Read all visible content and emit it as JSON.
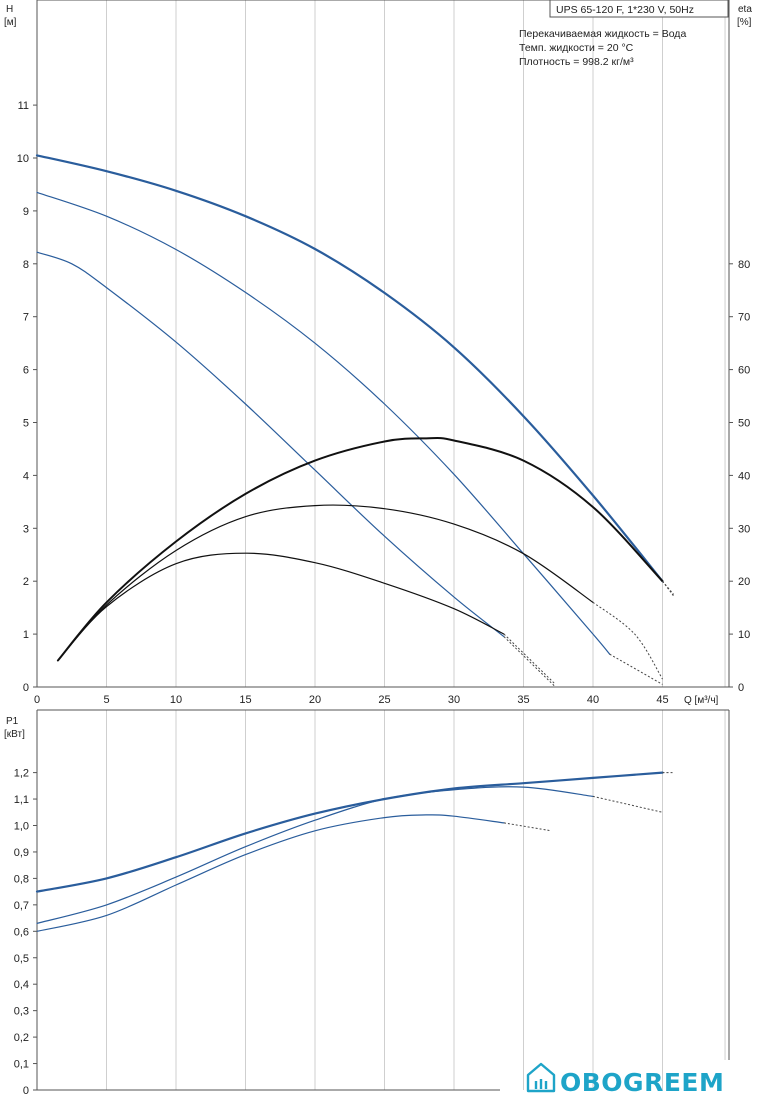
{
  "chart_data": [
    {
      "type": "line",
      "info": {
        "model": "UPS 65-120 F, 1*230 V, 50Hz",
        "line1": "Перекачиваемая жидкость = Вода",
        "line2": "Темп. жидкости = 20 °C",
        "line3": "Плотность = 998.2 кг/м³"
      },
      "ylabel_left": [
        "H",
        "[м]"
      ],
      "ylabel_right": [
        "eta",
        "[%]"
      ],
      "xlabel": "Q [м³/ч]",
      "xlim": [
        0,
        50
      ],
      "ylim": [
        0,
        12.5
      ],
      "ylim_right": [
        0,
        125
      ],
      "xticks": [
        "0",
        "5",
        "10",
        "15",
        "20",
        "25",
        "30",
        "35",
        "40",
        "45"
      ],
      "yticks": [
        "0",
        "1",
        "2",
        "3",
        "4",
        "5",
        "6",
        "7",
        "8",
        "9",
        "10",
        "11"
      ],
      "yticks_right": [
        "0",
        "10",
        "20",
        "30",
        "40",
        "50",
        "60",
        "70",
        "80"
      ],
      "series": [
        {
          "axis": "H",
          "color": "#2a5d9c",
          "width": 2.2,
          "solid": [
            [
              0,
              10.05
            ],
            [
              5,
              9.75
            ],
            [
              10,
              9.38
            ],
            [
              15,
              8.9
            ],
            [
              20,
              8.28
            ],
            [
              25,
              7.45
            ],
            [
              30,
              6.42
            ],
            [
              35,
              5.12
            ],
            [
              40,
              3.62
            ],
            [
              45,
              2.0
            ]
          ],
          "dashed": [
            [
              45,
              2.0
            ],
            [
              45.8,
              1.75
            ]
          ]
        },
        {
          "axis": "H",
          "color": "#2a5d9c",
          "width": 1.2,
          "solid": [
            [
              0,
              9.35
            ],
            [
              5,
              8.9
            ],
            [
              10,
              8.27
            ],
            [
              15,
              7.46
            ],
            [
              20,
              6.5
            ],
            [
              25,
              5.35
            ],
            [
              30,
              4.02
            ],
            [
              35,
              2.52
            ],
            [
              40,
              1.0
            ],
            [
              41.2,
              0.62
            ]
          ],
          "dashed": [
            [
              41.2,
              0.62
            ],
            [
              45,
              0.05
            ]
          ]
        },
        {
          "axis": "H",
          "color": "#2a5d9c",
          "width": 1.2,
          "solid": [
            [
              0,
              8.22
            ],
            [
              2.5,
              8.0
            ],
            [
              5,
              7.55
            ],
            [
              10,
              6.52
            ],
            [
              15,
              5.35
            ],
            [
              20,
              4.1
            ],
            [
              25,
              2.85
            ],
            [
              30,
              1.7
            ],
            [
              33.6,
              0.95
            ]
          ],
          "dashed": [
            [
              33.6,
              0.95
            ],
            [
              37.3,
              0.0
            ]
          ]
        },
        {
          "axis": "eta",
          "color": "#111111",
          "width": 2.0,
          "solid": [
            [
              1.5,
              5
            ],
            [
              5,
              16
            ],
            [
              10,
              27.5
            ],
            [
              15,
              36.5
            ],
            [
              20,
              42.8
            ],
            [
              25,
              46.4
            ],
            [
              28,
              47
            ],
            [
              30,
              46.6
            ],
            [
              35,
              42.8
            ],
            [
              40,
              34
            ],
            [
              45,
              20
            ]
          ],
          "dashed": [
            [
              45,
              20
            ],
            [
              45.8,
              17.2
            ]
          ]
        },
        {
          "axis": "eta",
          "color": "#111111",
          "width": 1.2,
          "solid": [
            [
              1.5,
              5
            ],
            [
              5,
              15.5
            ],
            [
              10,
              25.8
            ],
            [
              15,
              32.2
            ],
            [
              20,
              34.3
            ],
            [
              25,
              33.7
            ],
            [
              30,
              30.8
            ],
            [
              35,
              25.2
            ],
            [
              40,
              16
            ]
          ],
          "dashed": [
            [
              40,
              16
            ],
            [
              43,
              10
            ],
            [
              45,
              1.5
            ]
          ]
        },
        {
          "axis": "eta",
          "color": "#111111",
          "width": 1.2,
          "solid": [
            [
              1.5,
              5
            ],
            [
              5,
              15.2
            ],
            [
              10,
              23.3
            ],
            [
              15,
              25.3
            ],
            [
              20,
              23.5
            ],
            [
              25,
              19.6
            ],
            [
              30,
              14.8
            ],
            [
              33.6,
              10
            ]
          ],
          "dashed": [
            [
              33.6,
              10
            ],
            [
              37.3,
              0.5
            ]
          ]
        }
      ]
    },
    {
      "type": "line",
      "ylabel_left": [
        "P1",
        "[кВт]"
      ],
      "xlim": [
        0,
        50
      ],
      "ylim": [
        0,
        1.3
      ],
      "yticks": [
        "0",
        "0,1",
        "0,2",
        "0,3",
        "0,4",
        "0,5",
        "0,6",
        "0,7",
        "0,8",
        "0,9",
        "1,0",
        "1,1",
        "1,2"
      ],
      "series": [
        {
          "color": "#2a5d9c",
          "width": 2.2,
          "solid": [
            [
              0,
              0.75
            ],
            [
              5,
              0.8
            ],
            [
              10,
              0.88
            ],
            [
              15,
              0.97
            ],
            [
              20,
              1.045
            ],
            [
              25,
              1.1
            ],
            [
              30,
              1.14
            ],
            [
              35,
              1.16
            ],
            [
              40,
              1.18
            ],
            [
              45,
              1.2
            ]
          ],
          "dashed": [
            [
              45,
              1.2
            ],
            [
              45.8,
              1.2
            ]
          ]
        },
        {
          "color": "#2a5d9c",
          "width": 1.2,
          "solid": [
            [
              0,
              0.63
            ],
            [
              5,
              0.7
            ],
            [
              10,
              0.805
            ],
            [
              15,
              0.92
            ],
            [
              20,
              1.02
            ],
            [
              25,
              1.1
            ],
            [
              30,
              1.135
            ],
            [
              35,
              1.145
            ],
            [
              40,
              1.11
            ]
          ],
          "dashed": [
            [
              40,
              1.11
            ],
            [
              42.5,
              1.08
            ],
            [
              45,
              1.05
            ]
          ]
        },
        {
          "color": "#2a5d9c",
          "width": 1.2,
          "solid": [
            [
              0,
              0.6
            ],
            [
              5,
              0.66
            ],
            [
              10,
              0.775
            ],
            [
              15,
              0.89
            ],
            [
              20,
              0.98
            ],
            [
              25,
              1.03
            ],
            [
              28,
              1.04
            ],
            [
              30,
              1.035
            ],
            [
              33.6,
              1.01
            ]
          ],
          "dashed": [
            [
              33.6,
              1.01
            ],
            [
              37,
              0.98
            ]
          ]
        }
      ]
    }
  ],
  "watermark": {
    "text": "OBOGREEM",
    "color": "#1ea4c8",
    "icon": "house-icon"
  }
}
